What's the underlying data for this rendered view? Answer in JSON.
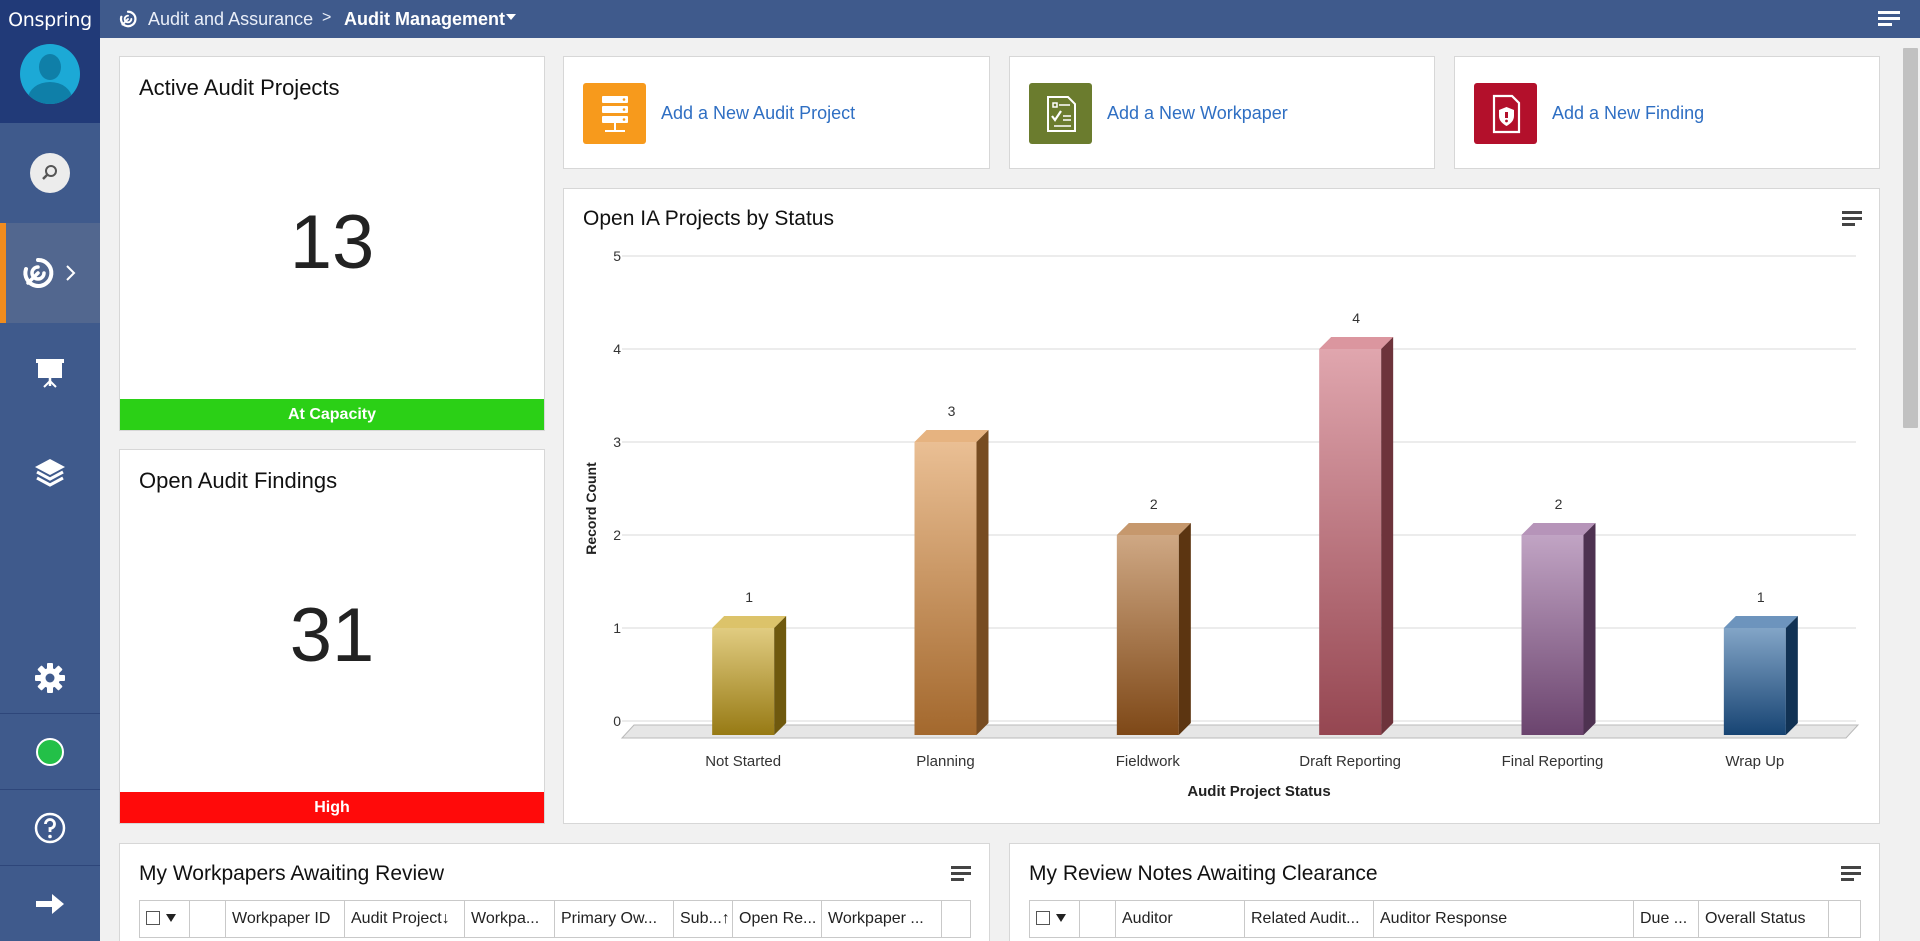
{
  "app": {
    "logo": "Onspring"
  },
  "breadcrumb": {
    "parent": "Audit and Assurance",
    "separator": ">",
    "current": "Audit Management"
  },
  "kpis": {
    "active_projects": {
      "title": "Active Audit Projects",
      "value": "13",
      "status": "At Capacity",
      "status_color": "#2bd016"
    },
    "open_findings": {
      "title": "Open Audit Findings",
      "value": "31",
      "status": "High",
      "status_color": "#ff0a0a"
    }
  },
  "actions": [
    {
      "label": "Add a New Audit Project",
      "icon": "server-stack-icon",
      "color": "#f79a1c"
    },
    {
      "label": "Add a New Workpaper",
      "icon": "checklist-doc-icon",
      "color": "#6b7c2e"
    },
    {
      "label": "Add a New Finding",
      "icon": "shield-doc-icon",
      "color": "#b3102b"
    }
  ],
  "chart_panel": {
    "title": "Open IA Projects by Status"
  },
  "chart_data": {
    "type": "bar",
    "title": "Open IA Projects by Status",
    "xlabel": "Audit Project Status",
    "ylabel": "Record Count",
    "ylim": [
      0,
      5
    ],
    "yticks": [
      0,
      1,
      2,
      3,
      4,
      5
    ],
    "categories": [
      "Not Started",
      "Planning",
      "Fieldwork",
      "Draft Reporting",
      "Final Reporting",
      "Wrap Up"
    ],
    "values": [
      1,
      3,
      2,
      4,
      2,
      1
    ],
    "colors": [
      "#c9a21a",
      "#d98a3c",
      "#a8601f",
      "#c75d6c",
      "#8e5a93",
      "#1e5b99"
    ],
    "grid": true
  },
  "workpapers_panel": {
    "title": "My Workpapers Awaiting Review",
    "columns": [
      "Workpaper ID",
      "Audit Project↓",
      "Workpa...",
      "Primary Ow...",
      "Sub...↑",
      "Open Re...",
      "Workpaper ..."
    ]
  },
  "review_notes_panel": {
    "title": "My Review Notes Awaiting Clearance",
    "columns": [
      "Auditor",
      "Related Audit...",
      "Auditor Response",
      "Due ...",
      "Overall Status"
    ]
  }
}
